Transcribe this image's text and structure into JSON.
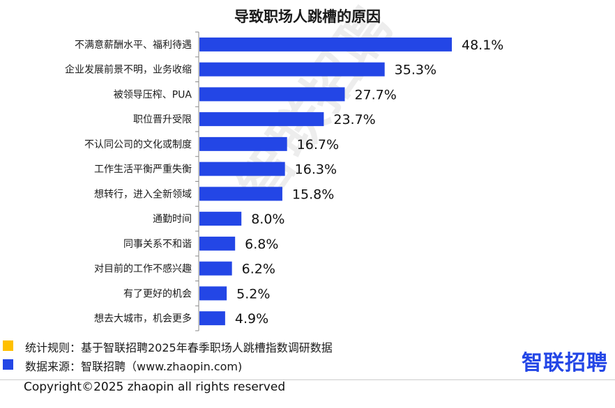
{
  "chart_data": {
    "type": "bar",
    "orientation": "horizontal",
    "title": "导致职场人跳槽的原因",
    "categories": [
      "不满意薪酬水平、福利待遇",
      "企业发展前景不明，业务收缩",
      "被领导压榨、PUA",
      "职位晋升受限",
      "不认同公司的文化或制度",
      "工作生活平衡严重失衡",
      "想转行，进入全新领域",
      "通勤时间",
      "同事关系不和谐",
      "对目前的工作不感兴趣",
      "有了更好的机会",
      "想去大城市，机会更多"
    ],
    "values": [
      48.1,
      35.3,
      27.7,
      23.7,
      16.7,
      16.3,
      15.8,
      8.0,
      6.8,
      6.2,
      5.2,
      4.9
    ],
    "value_labels": [
      "48.1%",
      "35.3%",
      "27.7%",
      "23.7%",
      "16.7%",
      "16.3%",
      "15.8%",
      "8.0%",
      "6.8%",
      "6.2%",
      "5.2%",
      "4.9%"
    ],
    "unit": "%",
    "xlim": [
      0,
      50
    ],
    "grid": false,
    "bar_color": "#2346e6"
  },
  "watermark": "智联招聘",
  "legend": [
    {
      "color": "#ffc000",
      "text": "统计规则：基于智联招聘2025年春季职场人跳槽指数调研数据"
    },
    {
      "color": "#2346e6",
      "text": "数据来源：智联招聘（www.zhaopin.com)"
    }
  ],
  "brand": "智联招聘",
  "copyright": "Copyright©2025 zhaopin all rights reserved"
}
